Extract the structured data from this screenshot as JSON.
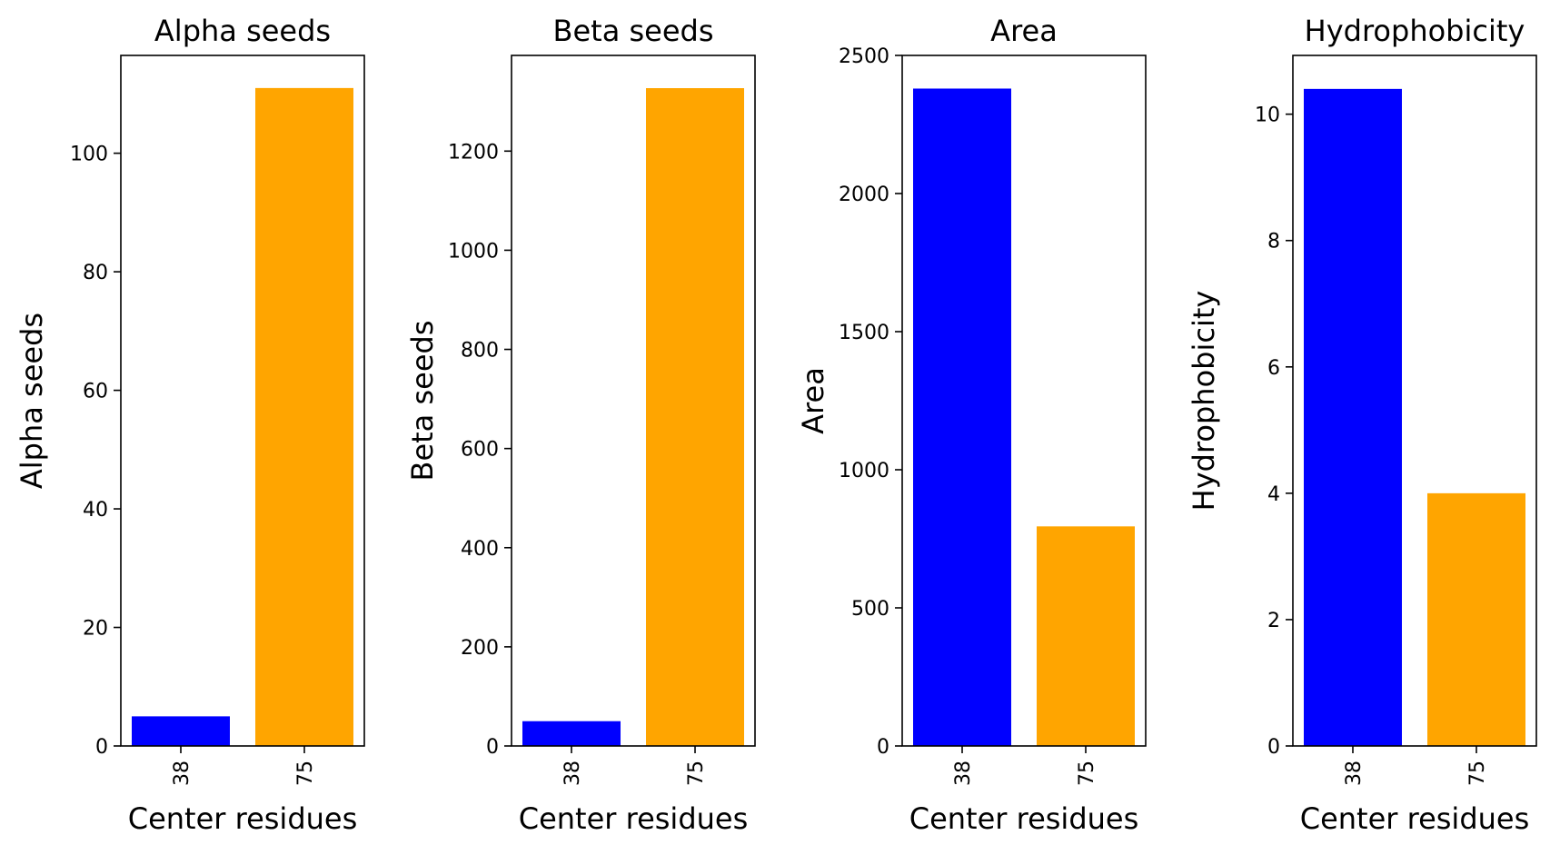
{
  "chart_data": [
    {
      "type": "bar",
      "title": "Alpha seeds",
      "xlabel": "Center residues",
      "ylabel": "Alpha seeds",
      "categories": [
        "38",
        "75"
      ],
      "values": [
        5,
        111
      ],
      "colors": [
        "#0000ff",
        "#ffa500"
      ],
      "ylim": [
        0,
        116.5
      ],
      "yticks": [
        0,
        20,
        40,
        60,
        80,
        100
      ],
      "grid": false
    },
    {
      "type": "bar",
      "title": "Beta seeds",
      "xlabel": "Center residues",
      "ylabel": "Beta seeds",
      "categories": [
        "38",
        "75"
      ],
      "values": [
        50,
        1327
      ],
      "colors": [
        "#0000ff",
        "#ffa500"
      ],
      "ylim": [
        0,
        1393
      ],
      "yticks": [
        0,
        200,
        400,
        600,
        800,
        1000,
        1200
      ],
      "grid": false
    },
    {
      "type": "bar",
      "title": "Area",
      "xlabel": "Center residues",
      "ylabel": "Area",
      "categories": [
        "38",
        "75"
      ],
      "values": [
        2380,
        795
      ],
      "colors": [
        "#0000ff",
        "#ffa500"
      ],
      "ylim": [
        0,
        2500
      ],
      "yticks": [
        0,
        500,
        1000,
        1500,
        2000,
        2500
      ],
      "grid": false
    },
    {
      "type": "bar",
      "title": "Hydrophobicity",
      "xlabel": "Center residues",
      "ylabel": "Hydrophobicity",
      "categories": [
        "38",
        "75"
      ],
      "values": [
        10.4,
        4.0
      ],
      "colors": [
        "#0000ff",
        "#ffa500"
      ],
      "ylim": [
        0,
        10.93
      ],
      "yticks": [
        0,
        2,
        4,
        6,
        8,
        10
      ],
      "grid": false
    }
  ]
}
